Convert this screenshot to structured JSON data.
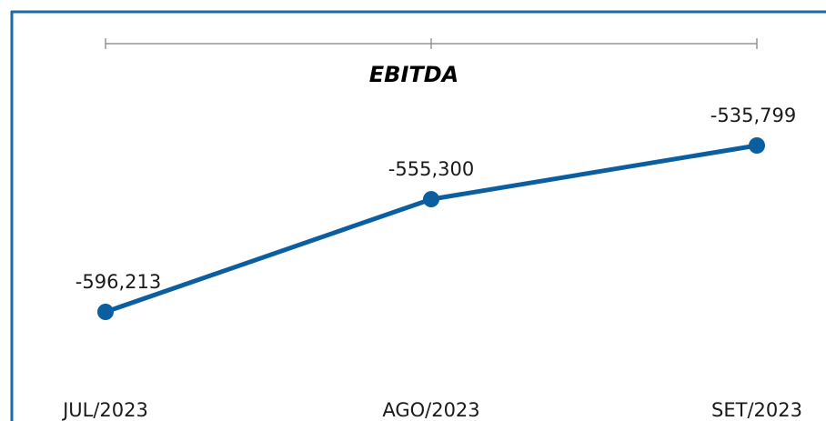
{
  "chart_data": {
    "type": "line",
    "title": "EBITDA",
    "categories": [
      "JUL/2023",
      "AGO/2023",
      "SET/2023"
    ],
    "series": [
      {
        "values": [
          -596213,
          -555300,
          -535799
        ],
        "labels": [
          "-596,213",
          "-555,300",
          "-535,799"
        ]
      }
    ],
    "xlabel": "",
    "ylabel": "",
    "grid": false,
    "legend": "none",
    "colors": {
      "line": "#0b5fa0",
      "frame": "#1d6aa6",
      "bracket": "#7f7f7f"
    }
  }
}
